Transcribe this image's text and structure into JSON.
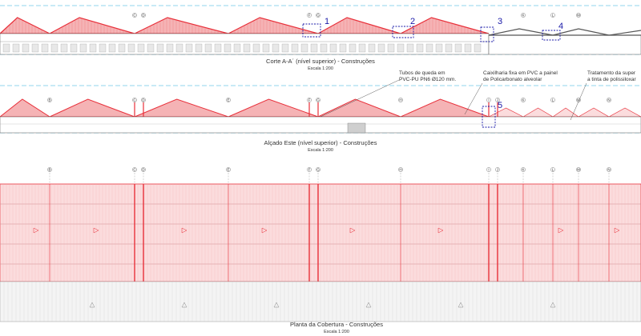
{
  "colors": {
    "roof_red": "#e8303a",
    "roof_fill": "#f5b3b5",
    "roof_fill_light": "#fbdcdd",
    "callout_blue": "#1a1aa8",
    "axis_line": "#22aadd",
    "line_grey": "#555555"
  },
  "section": {
    "title": "Corte A-A´ (nível superior) - Construções",
    "scale": "Escala 1:200",
    "axes": [
      "C",
      "D",
      "F",
      "G",
      "K",
      "L",
      "M"
    ],
    "callouts": [
      "1",
      "2",
      "3",
      "4"
    ]
  },
  "elevation": {
    "title": "Alçado Este (nível superior) - Construções",
    "scale": "Escala 1:200",
    "axes": [
      "B",
      "C",
      "D",
      "E",
      "F",
      "G",
      "H",
      "I",
      "J",
      "K",
      "L",
      "M",
      "N"
    ],
    "callouts": [
      "5"
    ],
    "notes": [
      {
        "lines": [
          "Tubos de queda em",
          "PVC-PU PN6 Ø120 mm."
        ]
      },
      {
        "lines": [
          "Caixilharia fixa em PVC a painel",
          "de Policarbonato alveolar"
        ]
      },
      {
        "lines": [
          "Tratamento da super",
          "a tinta de polissiloxar"
        ]
      }
    ]
  },
  "plan": {
    "title": "Planta da Cobertura - Construções",
    "scale": "Escala 1:200",
    "axes": [
      "B",
      "C",
      "D",
      "E",
      "F",
      "G",
      "H",
      "I",
      "J",
      "K",
      "L",
      "M",
      "N"
    ]
  }
}
